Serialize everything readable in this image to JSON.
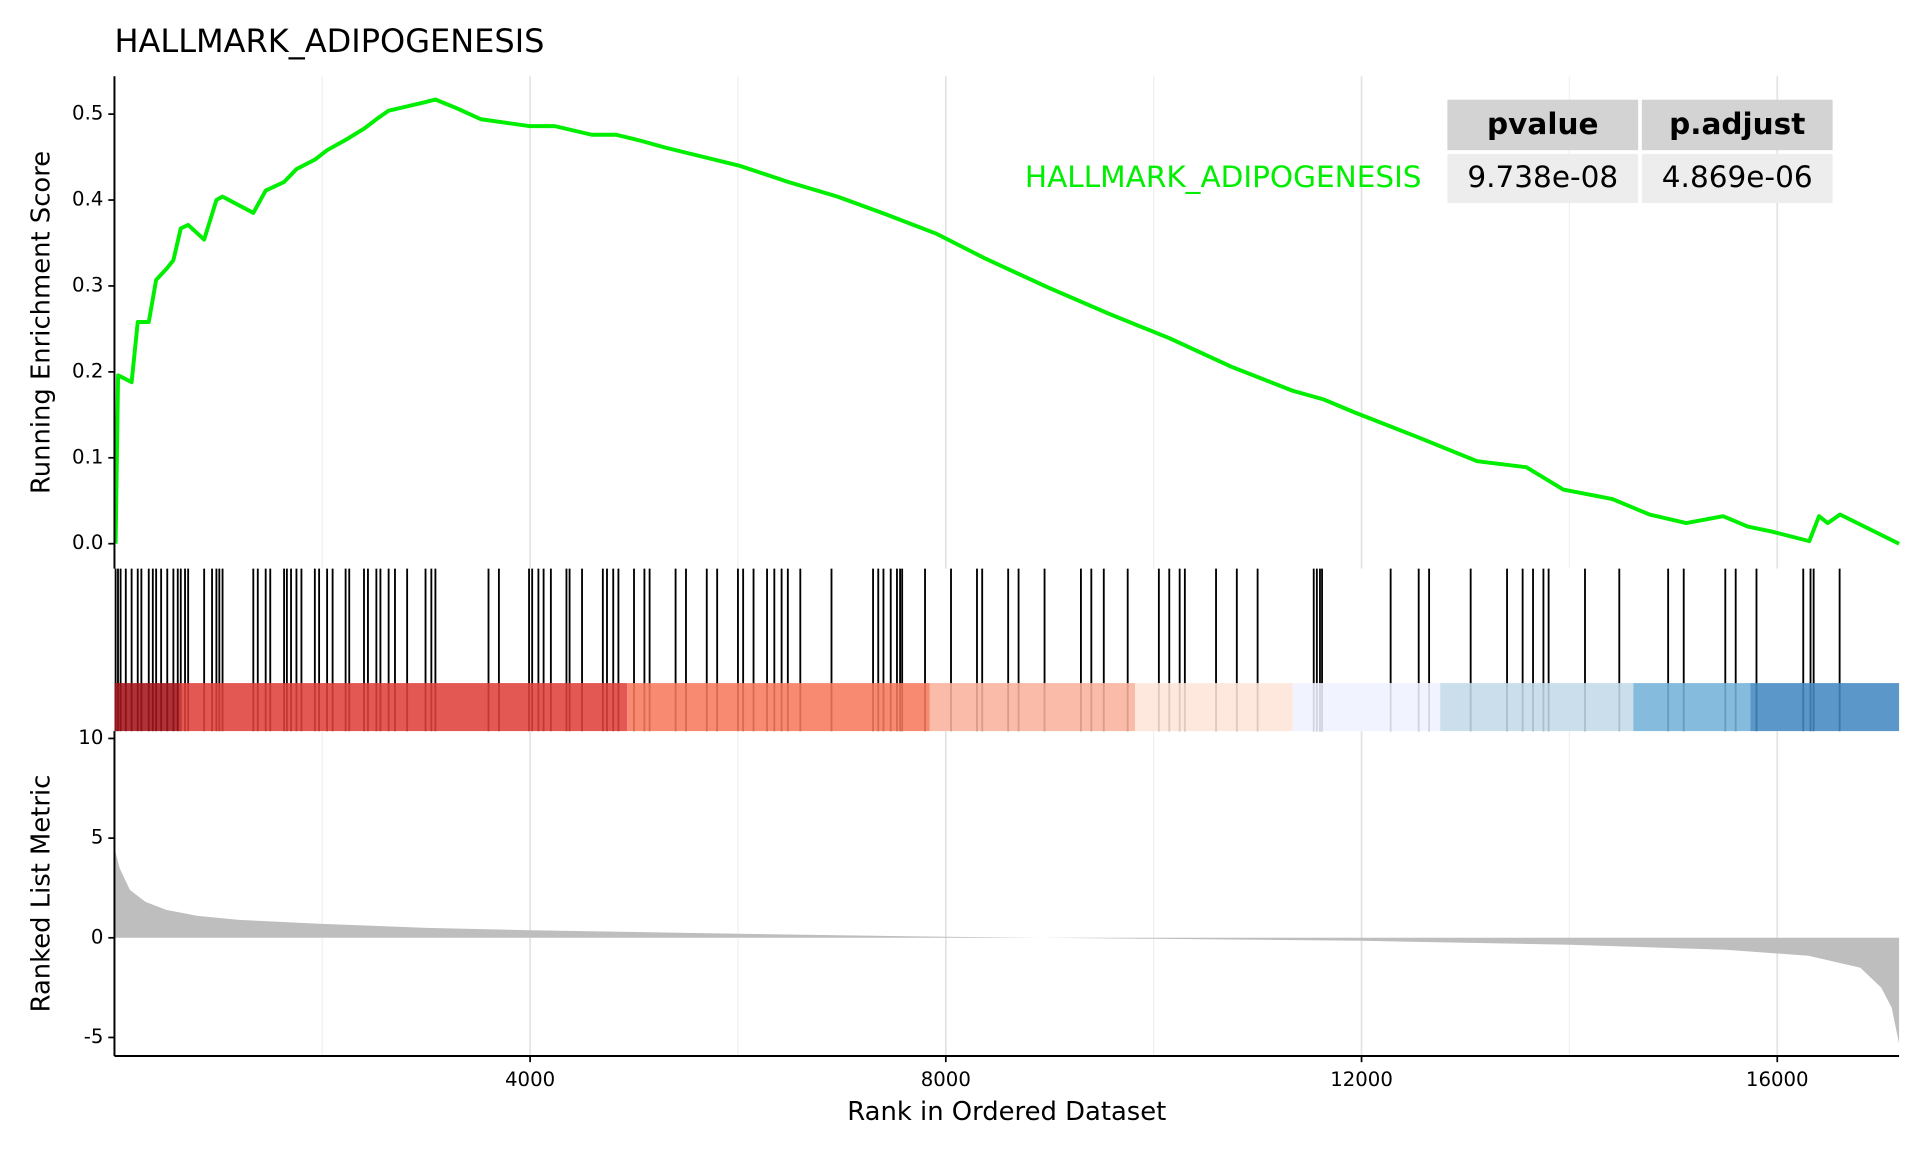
{
  "chart_data": [
    {
      "type": "line",
      "title": "HALLMARK_ADIPOGENESIS",
      "ylabel": "Running Enrichment Score",
      "x": [
        12,
        36,
        166,
        225,
        331,
        402,
        509,
        568,
        639,
        710,
        864,
        982,
        1041,
        1337,
        1456,
        1633,
        1752,
        1929,
        2047,
        2225,
        2402,
        2521,
        2639,
        2817,
        2994,
        3089,
        3290,
        3527,
        3763,
        4000,
        4237,
        4592,
        4828,
        5065,
        5302,
        5538,
        6012,
        6485,
        6958,
        7432,
        7905,
        8378,
        8970,
        9562,
        10154,
        10746,
        11337,
        11633,
        11929,
        12521,
        13112,
        13586,
        13941,
        14414,
        14769,
        15124,
        15479,
        15716,
        15953,
        16308,
        16402,
        16485,
        16604,
        17172
      ],
      "series": [
        {
          "name": "HALLMARK_ADIPOGENESIS",
          "color": "#00ee00",
          "values": [
            0,
            0.196,
            0.188,
            0.258,
            0.258,
            0.307,
            0.321,
            0.33,
            0.367,
            0.371,
            0.354,
            0.4,
            0.404,
            0.385,
            0.411,
            0.421,
            0.436,
            0.447,
            0.458,
            0.47,
            0.483,
            0.494,
            0.504,
            0.509,
            0.514,
            0.517,
            0.507,
            0.494,
            0.49,
            0.486,
            0.486,
            0.476,
            0.476,
            0.469,
            0.461,
            0.454,
            0.44,
            0.421,
            0.404,
            0.383,
            0.361,
            0.332,
            0.299,
            0.268,
            0.239,
            0.206,
            0.178,
            0.168,
            0.153,
            0.125,
            0.096,
            0.089,
            0.063,
            0.052,
            0.034,
            0.024,
            0.032,
            0.02,
            0.014,
            0.003,
            0.032,
            0.024,
            0.034,
            0
          ]
        }
      ],
      "xlim": [
        1,
        17172
      ],
      "ylim": [
        -0.029,
        0.544
      ],
      "yticks": [
        {
          "value": 0,
          "label": "0.0"
        },
        0.1,
        0.2,
        0.3,
        0.4,
        0.5
      ],
      "xticks": [
        4000,
        8000,
        12000,
        16000
      ],
      "xgrid_minor": [
        2000,
        6000,
        10000,
        14000
      ],
      "grid": true
    },
    {
      "type": "rug",
      "color": "#000000",
      "xlim": [
        1,
        17172
      ],
      "x": [
        12,
        35,
        60,
        110,
        166,
        225,
        260,
        331,
        370,
        402,
        450,
        509,
        568,
        610,
        639,
        680,
        710,
        864,
        940,
        982,
        1010,
        1041,
        1337,
        1380,
        1456,
        1500,
        1633,
        1660,
        1700,
        1752,
        1800,
        1929,
        1970,
        2047,
        2100,
        2225,
        2260,
        2402,
        2440,
        2521,
        2560,
        2639,
        2700,
        2817,
        2994,
        3050,
        3089,
        3600,
        3700,
        3990,
        4020,
        4080,
        4130,
        4200,
        4350,
        4380,
        4500,
        4700,
        4740,
        4800,
        4850,
        5000,
        5100,
        5150,
        5400,
        5500,
        5700,
        5800,
        6000,
        6050,
        6150,
        6280,
        6350,
        6420,
        6480,
        6600,
        6900,
        7300,
        7350,
        7400,
        7470,
        7530,
        7560,
        7580,
        7800,
        8050,
        8300,
        8350,
        8600,
        8700,
        8950,
        9300,
        9400,
        9520,
        9750,
        10050,
        10150,
        10250,
        10300,
        10600,
        10800,
        11000,
        11540,
        11570,
        11600,
        11620,
        12280,
        12550,
        12650,
        13050,
        13400,
        13550,
        13650,
        13750,
        13800,
        14150,
        14480,
        14950,
        15100,
        15500,
        15600,
        15800,
        16250,
        16320,
        16350,
        16600
      ],
      "bands": {
        "edges": [
          1,
          627,
          4935,
          7846,
          9822,
          11337,
          12757,
          14615,
          15740,
          17172
        ],
        "colors": [
          "#a3161b",
          "#e0413b",
          "#f77a5e",
          "#f9b39c",
          "#fee5d9",
          "#eff3ff",
          "#c3dbe8",
          "#74b3da",
          "#4689c1"
        ]
      }
    },
    {
      "type": "area",
      "ylabel": "Ranked List Metric",
      "xlabel": "Rank in Ordered Dataset",
      "color": "#bebebe",
      "x": [
        1,
        50,
        150,
        300,
        500,
        800,
        1200,
        2000,
        3000,
        4000,
        6000,
        8000,
        10000,
        12000,
        14000,
        15500,
        16300,
        16800,
        17000,
        17100,
        17172
      ],
      "values": [
        4.5,
        3.5,
        2.4,
        1.8,
        1.4,
        1.1,
        0.9,
        0.7,
        0.5,
        0.38,
        0.2,
        0.05,
        -0.05,
        -0.15,
        -0.35,
        -0.6,
        -0.9,
        -1.5,
        -2.5,
        -3.5,
        -5.3
      ],
      "xlim": [
        1,
        17172
      ],
      "ylim": [
        -5.93,
        10.37
      ],
      "yticks": [
        -5,
        0,
        5,
        10
      ],
      "xticks": [
        4000,
        8000,
        12000,
        16000
      ],
      "xgrid_minor": [
        2000,
        6000,
        10000,
        14000
      ],
      "grid": true
    }
  ],
  "table": {
    "columns": [
      "pvalue",
      "p.adjust"
    ],
    "rows": [
      [
        "9.738e-08",
        "4.869e-06"
      ]
    ]
  }
}
